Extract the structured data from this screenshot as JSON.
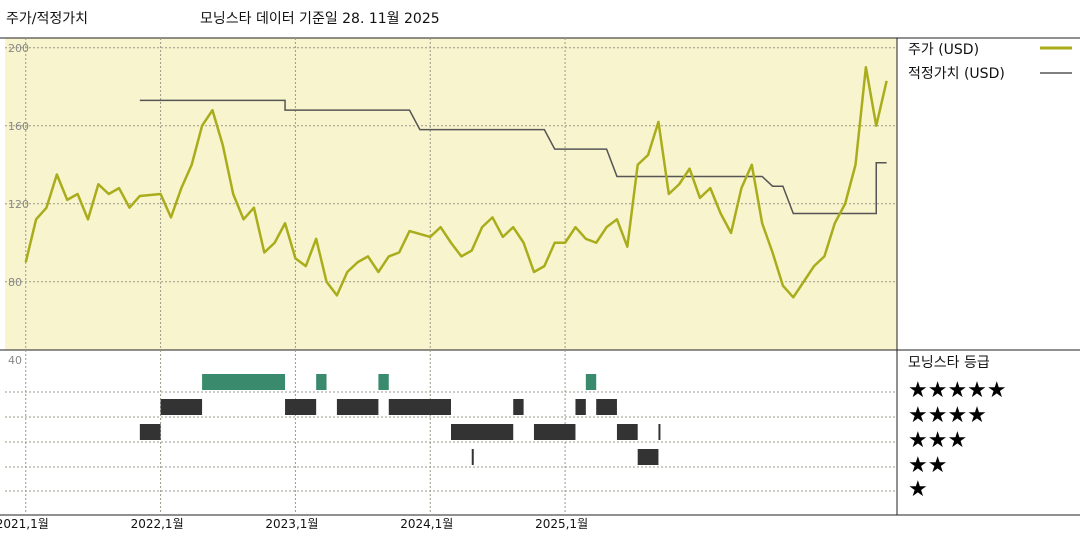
{
  "header": {
    "left_title": "주가/적정가치",
    "center_title": "모닝스타 데이터 기준일 28. 11월 2025"
  },
  "legend": {
    "price_label": "주가 (USD)",
    "fair_label": "적정가치 (USD)",
    "rating_title": "모닝스타 등급"
  },
  "colors": {
    "price_line": "#a9ad1c",
    "fair_line": "#555555",
    "panel_bg": "#f8f4cd",
    "rating5": "#3a8a6e",
    "rating_other": "#333333"
  },
  "chart_data": [
    {
      "type": "line",
      "title": "주가/적정가치",
      "xlabel": "",
      "ylabel": "",
      "ylim": [
        45,
        205
      ],
      "yticks": [
        80,
        120,
        160,
        200
      ],
      "xticks": [
        "2021,1월",
        "2022,1월",
        "2023,1월",
        "2024,1월",
        "2025,1월"
      ],
      "grid": true,
      "legend_position": "top-right",
      "series": [
        {
          "name": "주가 (USD)",
          "points": [
            [
              "2021-01",
              90
            ],
            [
              "2021-02",
              112
            ],
            [
              "2021-03",
              118
            ],
            [
              "2021-04",
              135
            ],
            [
              "2021-05",
              122
            ],
            [
              "2021-06",
              125
            ],
            [
              "2021-07",
              112
            ],
            [
              "2021-08",
              130
            ],
            [
              "2021-09",
              125
            ],
            [
              "2021-10",
              128
            ],
            [
              "2021-11",
              118
            ],
            [
              "2021-12",
              124
            ],
            [
              "2022-01",
              125
            ],
            [
              "2022-02",
              113
            ],
            [
              "2022-03",
              128
            ],
            [
              "2022-04",
              140
            ],
            [
              "2022-05",
              160
            ],
            [
              "2022-06",
              168
            ],
            [
              "2022-07",
              150
            ],
            [
              "2022-08",
              125
            ],
            [
              "2022-09",
              112
            ],
            [
              "2022-10",
              118
            ],
            [
              "2022-11",
              95
            ],
            [
              "2022-12",
              100
            ],
            [
              "2022-13",
              110
            ],
            [
              "2023-01",
              92
            ],
            [
              "2023-02",
              88
            ],
            [
              "2023-03",
              102
            ],
            [
              "2023-04",
              80
            ],
            [
              "2023-05",
              73
            ],
            [
              "2023-06",
              85
            ],
            [
              "2023-07",
              90
            ],
            [
              "2023-08",
              93
            ],
            [
              "2023-09",
              85
            ],
            [
              "2023-10",
              93
            ],
            [
              "2023-11",
              95
            ],
            [
              "2023-12",
              106
            ],
            [
              "2024-01",
              103
            ],
            [
              "2024-02",
              108
            ],
            [
              "2024-03",
              100
            ],
            [
              "2024-04",
              93
            ],
            [
              "2024-05",
              96
            ],
            [
              "2024-06",
              108
            ],
            [
              "2024-07",
              113
            ],
            [
              "2024-08",
              103
            ],
            [
              "2024-09",
              108
            ],
            [
              "2024-10",
              100
            ],
            [
              "2024-11",
              85
            ],
            [
              "2024-12",
              88
            ],
            [
              "2024-13",
              100
            ],
            [
              "2025-01",
              100
            ],
            [
              "2025-02",
              108
            ],
            [
              "2025-03",
              102
            ],
            [
              "2025-04",
              100
            ],
            [
              "2025-05",
              108
            ],
            [
              "2025-06",
              112
            ],
            [
              "2025-07",
              98
            ],
            [
              "2025-08",
              140
            ],
            [
              "2025-09",
              145
            ],
            [
              "2025-10",
              162
            ],
            [
              "2025-11",
              125
            ],
            [
              "2025-12",
              130
            ],
            [
              "2025-13",
              138
            ],
            [
              "2026-01",
              123
            ],
            [
              "2026-02",
              128
            ],
            [
              "2026-03",
              115
            ],
            [
              "2026-04",
              105
            ],
            [
              "2026-05",
              128
            ],
            [
              "2026-06",
              140
            ],
            [
              "2026-07",
              110
            ],
            [
              "2026-08",
              95
            ],
            [
              "2026-09",
              78
            ],
            [
              "2026-10",
              72
            ],
            [
              "2026-11",
              80
            ],
            [
              "2026-12",
              88
            ],
            [
              "2026-13",
              93
            ],
            [
              "2027-01",
              110
            ],
            [
              "2027-02",
              120
            ],
            [
              "2027-03",
              140
            ],
            [
              "2027-04",
              190
            ],
            [
              "2027-05",
              160
            ],
            [
              "2027-06",
              183
            ]
          ]
        },
        {
          "name": "적정가치 (USD)",
          "points": [
            [
              "2021-12",
              173
            ],
            [
              "2022-13",
              173
            ],
            [
              "2022-13",
              168
            ],
            [
              "2023-12",
              168
            ],
            [
              "2023-13",
              158
            ],
            [
              "2024-12",
              158
            ],
            [
              "2024-13",
              148
            ],
            [
              "2025-05",
              148
            ],
            [
              "2025-06",
              134
            ],
            [
              "2026-07",
              134
            ],
            [
              "2026-08",
              129
            ],
            [
              "2026-09",
              129
            ],
            [
              "2026-10",
              115
            ],
            [
              "2027-05",
              115
            ],
            [
              "2027-05",
              141
            ],
            [
              "2027-06",
              141
            ]
          ]
        }
      ]
    },
    {
      "type": "heatmap",
      "title": "모닝스타 등급",
      "levels": [
        "★★★★★",
        "★★★★",
        "★★★",
        "★★",
        "★"
      ],
      "ylim": [
        0,
        40
      ],
      "ytick": 40,
      "segments": [
        {
          "rating": 3,
          "start": "2021-12",
          "end": "2022-01"
        },
        {
          "rating": 4,
          "start": "2022-01",
          "end": "2022-05"
        },
        {
          "rating": 5,
          "start": "2022-05",
          "end": "2022-13"
        },
        {
          "rating": 4,
          "start": "2022-13",
          "end": "2023-03"
        },
        {
          "rating": 5,
          "start": "2023-03",
          "end": "2023-04"
        },
        {
          "rating": 4,
          "start": "2023-05",
          "end": "2023-09"
        },
        {
          "rating": 5,
          "start": "2023-09",
          "end": "2023-10"
        },
        {
          "rating": 4,
          "start": "2023-10",
          "end": "2024-03"
        },
        {
          "rating": 3,
          "start": "2024-03",
          "end": "2024-09"
        },
        {
          "rating": 2,
          "start": "2024-05",
          "end": "2024-05"
        },
        {
          "rating": 4,
          "start": "2024-09",
          "end": "2024-10"
        },
        {
          "rating": 3,
          "start": "2024-11",
          "end": "2025-02"
        },
        {
          "rating": 4,
          "start": "2025-02",
          "end": "2025-03"
        },
        {
          "rating": 5,
          "start": "2025-03",
          "end": "2025-04"
        },
        {
          "rating": 4,
          "start": "2025-04",
          "end": "2025-06"
        },
        {
          "rating": 3,
          "start": "2025-06",
          "end": "2025-08"
        },
        {
          "rating": 2,
          "start": "2025-08",
          "end": "2025-10"
        },
        {
          "rating": 3,
          "start": "2025-10",
          "end": "2025-10"
        }
      ]
    }
  ]
}
